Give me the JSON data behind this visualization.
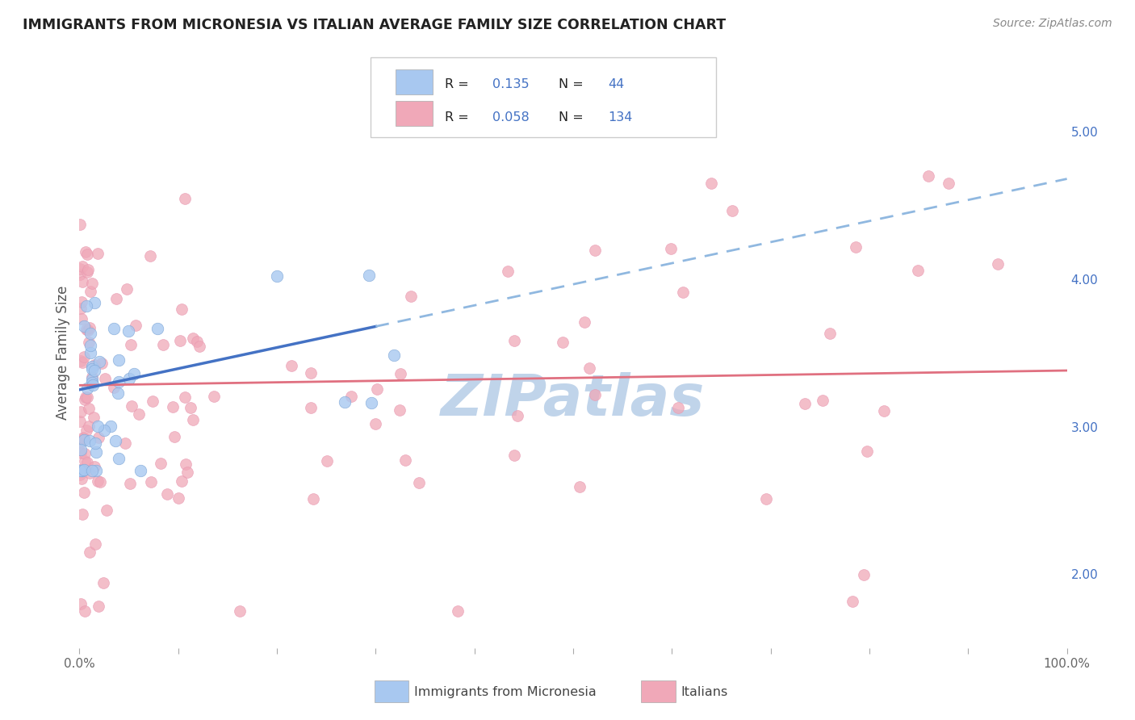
{
  "title": "IMMIGRANTS FROM MICRONESIA VS ITALIAN AVERAGE FAMILY SIZE CORRELATION CHART",
  "source": "Source: ZipAtlas.com",
  "ylabel": "Average Family Size",
  "right_yticks": [
    2.0,
    3.0,
    4.0,
    5.0
  ],
  "right_yticklabels": [
    "2.00",
    "3.00",
    "4.00",
    "5.00"
  ],
  "xlim": [
    0,
    1
  ],
  "ylim": [
    1.5,
    5.5
  ],
  "R_micronesia": 0.135,
  "N_micronesia": 44,
  "R_italians": 0.058,
  "N_italians": 134,
  "blue_color": "#a8c8f0",
  "pink_color": "#f0a8b8",
  "blue_line_color": "#4472c4",
  "pink_line_color": "#e07080",
  "blue_dash_color": "#90b8e0",
  "watermark_color": "#c0d4ea",
  "background_color": "#ffffff",
  "grid_color": "#cccccc",
  "legend_text_color": "#333333",
  "legend_value_color": "#4472c4",
  "blue_scatter_edge": "#80a8d8",
  "pink_scatter_edge": "#e898b0"
}
